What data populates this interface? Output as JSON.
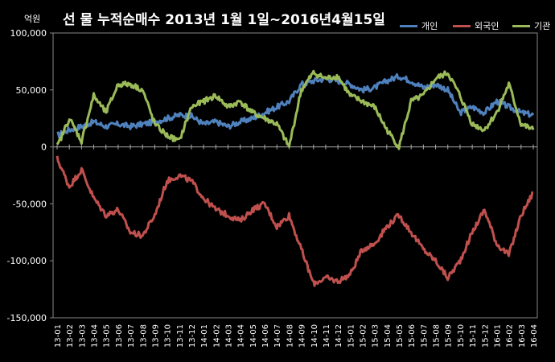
{
  "chart_data": {
    "type": "line",
    "title": "선 물 누적순매수 2013년 1월 1일~2016년4월15일",
    "ylabel": "억원",
    "xlabel": "",
    "ylim": [
      -150000,
      100000
    ],
    "yticks": [
      "100,000",
      "50,000",
      "0",
      "-50,000",
      "-100,000",
      "-150,000"
    ],
    "ytick_values": [
      100000,
      50000,
      0,
      -50000,
      -100000,
      -150000
    ],
    "grid": false,
    "legend": "top-right",
    "categories": [
      "13-01",
      "13-02",
      "13-03",
      "13-04",
      "13-05",
      "13-06",
      "13-07",
      "13-08",
      "13-09",
      "13-10",
      "13-11",
      "13-12",
      "14-01",
      "14-02",
      "14-03",
      "14-04",
      "14-05",
      "14-06",
      "14-07",
      "14-08",
      "14-09",
      "14-10",
      "14-11",
      "14-12",
      "15-01",
      "15-02",
      "15-03",
      "15-04",
      "15-05",
      "15-06",
      "15-07",
      "15-08",
      "15-09",
      "15-10",
      "15-11",
      "15-12",
      "16-01",
      "16-02",
      "16-03",
      "16-04"
    ],
    "series": [
      {
        "name": "개인",
        "color": "#4f81bd",
        "values": [
          10000,
          15000,
          18000,
          22000,
          18000,
          20000,
          18000,
          20000,
          22000,
          25000,
          28000,
          27000,
          20000,
          22000,
          18000,
          22000,
          25000,
          30000,
          35000,
          40000,
          55000,
          58000,
          60000,
          58000,
          55000,
          50000,
          52000,
          58000,
          62000,
          58000,
          52000,
          55000,
          50000,
          30000,
          35000,
          30000,
          40000,
          35000,
          30000,
          28000
        ]
      },
      {
        "name": "외국인",
        "color": "#c0504d",
        "values": [
          -10000,
          -35000,
          -20000,
          -45000,
          -60000,
          -55000,
          -75000,
          -78000,
          -60000,
          -30000,
          -25000,
          -30000,
          -45000,
          -55000,
          -60000,
          -65000,
          -55000,
          -50000,
          -70000,
          -60000,
          -90000,
          -120000,
          -115000,
          -118000,
          -112000,
          -90000,
          -85000,
          -70000,
          -60000,
          -75000,
          -90000,
          -100000,
          -115000,
          -100000,
          -75000,
          -55000,
          -85000,
          -95000,
          -60000,
          -40000
        ]
      },
      {
        "name": "기관",
        "color": "#9bbb59",
        "values": [
          0,
          25000,
          5000,
          45000,
          30000,
          55000,
          55000,
          50000,
          20000,
          10000,
          5000,
          35000,
          40000,
          45000,
          35000,
          40000,
          30000,
          25000,
          20000,
          0,
          50000,
          65000,
          60000,
          62000,
          45000,
          40000,
          35000,
          15000,
          0,
          40000,
          45000,
          60000,
          65000,
          45000,
          20000,
          15000,
          30000,
          55000,
          20000,
          15000
        ]
      }
    ]
  }
}
